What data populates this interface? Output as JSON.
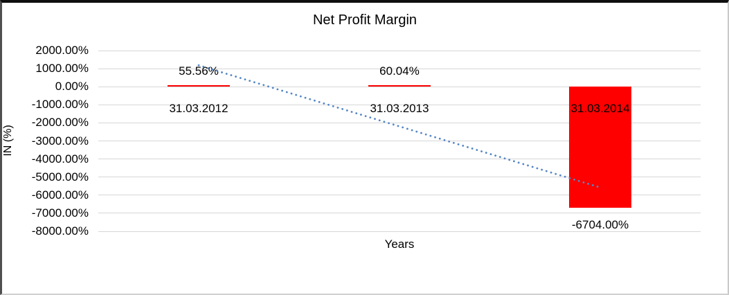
{
  "chart_data": {
    "type": "bar",
    "title": "Net Profit Margin",
    "xlabel": "Years",
    "ylabel": "IN (%)",
    "categories": [
      "31.03.2012",
      "31.03.2013",
      "31.03.2014"
    ],
    "values": [
      55.56,
      60.04,
      -6704.0
    ],
    "data_labels": [
      "55.56%",
      "60.04%",
      "-6704.00%"
    ],
    "series": [
      {
        "name": "Net Profit Margin",
        "values": [
          55.56,
          60.04,
          -6704.0
        ]
      }
    ],
    "y_tick_labels": [
      "2000.00%",
      "1000.00%",
      "0.00%",
      "-1000.00%",
      "-2000.00%",
      "-3000.00%",
      "-4000.00%",
      "-5000.00%",
      "-6000.00%",
      "-7000.00%",
      "-8000.00%"
    ],
    "y_tick_values": [
      2000,
      1000,
      0,
      -1000,
      -2000,
      -3000,
      -4000,
      -5000,
      -6000,
      -7000,
      -8000
    ],
    "ylim": [
      -8000,
      2000
    ],
    "grid": true,
    "legend": false,
    "bar_color": "#fe0000",
    "gridline_color": "#d6d6d6",
    "trendline": {
      "type": "linear",
      "style": "dotted",
      "color": "#5586c5"
    }
  }
}
